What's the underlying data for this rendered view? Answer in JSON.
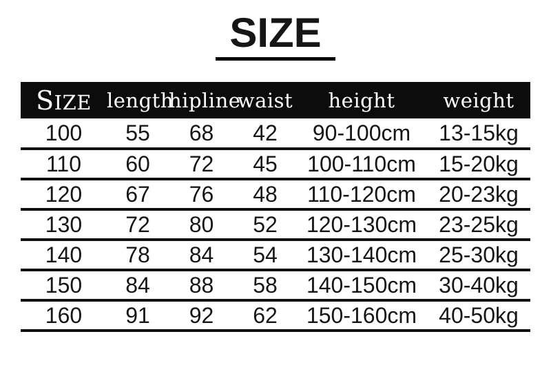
{
  "page_title": "SIZE",
  "chart_data": {
    "type": "table",
    "title": "SIZE",
    "columns": [
      "SIZE",
      "length",
      "hipline",
      "waist",
      "height",
      "weight"
    ],
    "rows": [
      [
        "100",
        "55",
        "68",
        "42",
        "90-100cm",
        "13-15kg"
      ],
      [
        "110",
        "60",
        "72",
        "45",
        "100-110cm",
        "15-20kg"
      ],
      [
        "120",
        "67",
        "76",
        "48",
        "110-120cm",
        "20-23kg"
      ],
      [
        "130",
        "72",
        "80",
        "52",
        "120-130cm",
        "23-25kg"
      ],
      [
        "140",
        "78",
        "84",
        "54",
        "130-140cm",
        "25-30kg"
      ],
      [
        "150",
        "84",
        "88",
        "58",
        "140-150cm",
        "30-40kg"
      ],
      [
        "160",
        "91",
        "92",
        "62",
        "150-160cm",
        "40-50kg"
      ]
    ]
  },
  "colors": {
    "background": "#ffffff",
    "header_bg": "#0c0c0c",
    "header_text": "#ffffff",
    "body_text": "#161616",
    "divider": "#101010",
    "title_underline": "#000000"
  }
}
